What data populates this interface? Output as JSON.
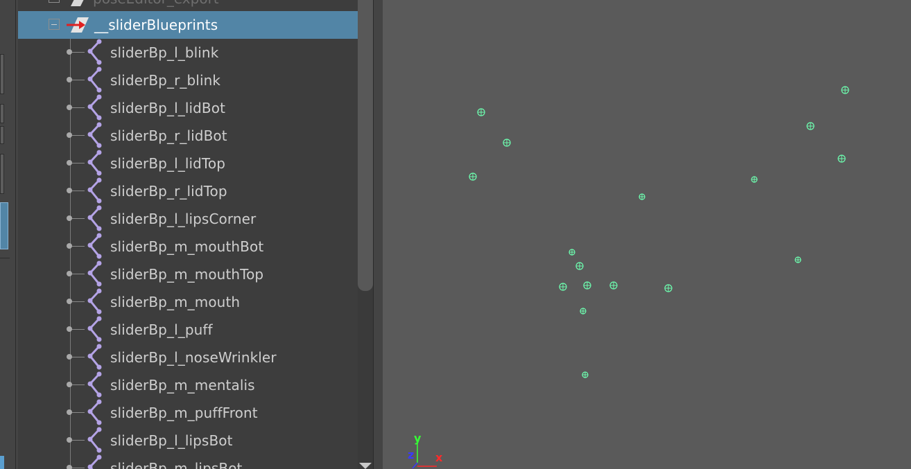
{
  "outliner": {
    "top_partial_item": "poseEditor_export",
    "group": {
      "label": "__sliderBlueprints",
      "expanded": true
    },
    "items": [
      {
        "label": "sliderBp_l_blink"
      },
      {
        "label": "sliderBp_r_blink"
      },
      {
        "label": "sliderBp_l_lidBot"
      },
      {
        "label": "sliderBp_r_lidBot"
      },
      {
        "label": "sliderBp_l_lidTop"
      },
      {
        "label": "sliderBp_r_lidTop"
      },
      {
        "label": "sliderBp_l_lipsCorner"
      },
      {
        "label": "sliderBp_m_mouthBot"
      },
      {
        "label": "sliderBp_m_mouthTop"
      },
      {
        "label": "sliderBp_m_mouth"
      },
      {
        "label": "sliderBp_l_puff"
      },
      {
        "label": "sliderBp_l_noseWrinkler"
      },
      {
        "label": "sliderBp_m_mentalis"
      },
      {
        "label": "sliderBp_m_puffFront"
      },
      {
        "label": "sliderBp_l_lipsBot"
      },
      {
        "label": "sliderBp_m_lipsBot"
      }
    ]
  },
  "viewport": {
    "axis_labels": {
      "y": "y",
      "z": "z",
      "x": "x"
    },
    "locator_color": "#6dffb0",
    "selection_color": "#5285a6",
    "axis_colors": {
      "x": "#ff2a2a",
      "y": "#36ff36",
      "z": "#3a3aff"
    }
  }
}
